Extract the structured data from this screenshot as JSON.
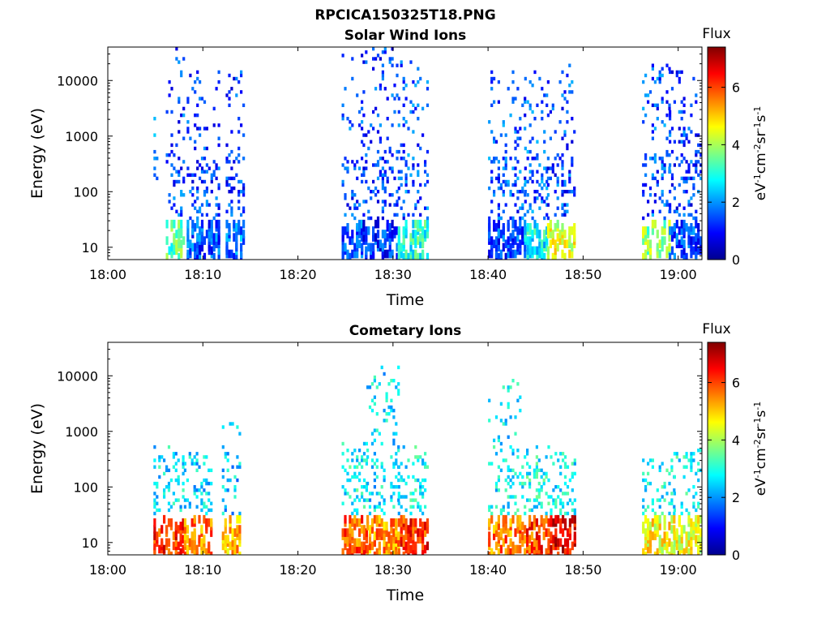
{
  "figure_title": "RPCICA150325T18.PNG",
  "colors": {
    "colormap": [
      "#00008f",
      "#0000ff",
      "#0080ff",
      "#00ffff",
      "#80ff80",
      "#ffff00",
      "#ff8000",
      "#ff0000",
      "#800000"
    ]
  },
  "chart_data": [
    {
      "type": "heatmap",
      "title": "Solar Wind Ions",
      "xlabel": "Time",
      "ylabel": "Energy (eV)",
      "x_unit": "minutes after 18:00",
      "xlim": [
        0,
        62.5
      ],
      "ylim": [
        6,
        40000
      ],
      "yscale": "log",
      "xticks": [
        0,
        10,
        20,
        30,
        40,
        50,
        60
      ],
      "xtick_labels": [
        "18:00",
        "18:10",
        "18:20",
        "18:30",
        "18:40",
        "18:50",
        "19:00"
      ],
      "yticks": [
        10,
        100,
        1000,
        10000
      ],
      "ytick_labels": [
        "10",
        "100",
        "1000",
        "10000"
      ],
      "colorbar": {
        "label": "Flux",
        "units": "eV-1cm-2sr-1s-1",
        "range": [
          0,
          7.4
        ],
        "ticks": [
          0,
          2,
          4,
          6
        ]
      },
      "bursts": [
        {
          "t0": 4.8,
          "t1": 5.2,
          "emin": 180,
          "emax": 2200,
          "flux": 2.2,
          "lowflux": 3.0
        },
        {
          "t0": 6.1,
          "t1": 8.1,
          "emin": 8,
          "emax": 35000,
          "flux": 1.4,
          "lowflux": 3.4
        },
        {
          "t0": 8.3,
          "t1": 11.6,
          "emin": 8,
          "emax": 14000,
          "flux": 1.3,
          "lowflux": 1.5
        },
        {
          "t0": 12.4,
          "t1": 14.2,
          "emin": 8,
          "emax": 22000,
          "flux": 1.3,
          "lowflux": 1.8
        },
        {
          "t0": 24.6,
          "t1": 26.8,
          "emin": 8,
          "emax": 28000,
          "flux": 1.4,
          "lowflux": 1.5
        },
        {
          "t0": 26.8,
          "t1": 30.5,
          "emin": 8,
          "emax": 38000,
          "flux": 1.3,
          "lowflux": 1.2
        },
        {
          "t0": 30.5,
          "t1": 33.6,
          "emin": 6,
          "emax": 22000,
          "flux": 1.5,
          "lowflux": 3.0
        },
        {
          "t0": 40.0,
          "t1": 43.8,
          "emin": 8,
          "emax": 14000,
          "flux": 1.5,
          "lowflux": 1.4
        },
        {
          "t0": 43.8,
          "t1": 46.2,
          "emin": 8,
          "emax": 14000,
          "flux": 1.6,
          "lowflux": 2.8
        },
        {
          "t0": 46.2,
          "t1": 49.2,
          "emin": 8,
          "emax": 20000,
          "flux": 1.4,
          "lowflux": 4.4
        },
        {
          "t0": 56.2,
          "t1": 59.0,
          "emin": 8,
          "emax": 22000,
          "flux": 1.5,
          "lowflux": 3.8
        },
        {
          "t0": 59.0,
          "t1": 62.3,
          "emin": 8,
          "emax": 14000,
          "flux": 1.3,
          "lowflux": 1.4
        }
      ]
    },
    {
      "type": "heatmap",
      "title": "Cometary Ions",
      "xlabel": "Time",
      "ylabel": "Energy (eV)",
      "x_unit": "minutes after 18:00",
      "xlim": [
        0,
        62.5
      ],
      "ylim": [
        6,
        40000
      ],
      "yscale": "log",
      "xticks": [
        0,
        10,
        20,
        30,
        40,
        50,
        60
      ],
      "xtick_labels": [
        "18:00",
        "18:10",
        "18:20",
        "18:30",
        "18:40",
        "18:50",
        "19:00"
      ],
      "yticks": [
        10,
        100,
        1000,
        10000
      ],
      "ytick_labels": [
        "10",
        "100",
        "1000",
        "10000"
      ],
      "colorbar": {
        "label": "Flux",
        "units": "eV-1cm-2sr-1s-1",
        "range": [
          0,
          7.4
        ],
        "ticks": [
          0,
          2,
          4,
          6
        ]
      },
      "bursts": [
        {
          "t0": 4.8,
          "t1": 8.0,
          "emin": 6,
          "emax": 500,
          "flux": 2.6,
          "lowflux": 6.2
        },
        {
          "t0": 8.0,
          "t1": 11.0,
          "emin": 6,
          "emax": 450,
          "flux": 2.5,
          "lowflux": 5.6
        },
        {
          "t0": 12.0,
          "t1": 14.0,
          "emin": 6,
          "emax": 1400,
          "flux": 2.4,
          "lowflux": 5.2
        },
        {
          "t0": 24.6,
          "t1": 27.2,
          "emin": 6,
          "emax": 600,
          "flux": 2.8,
          "lowflux": 5.8
        },
        {
          "t0": 27.2,
          "t1": 30.5,
          "emin": 6,
          "emax": 17000,
          "flux": 2.6,
          "lowflux": 5.4
        },
        {
          "t0": 30.5,
          "t1": 33.6,
          "emin": 6,
          "emax": 500,
          "flux": 2.8,
          "lowflux": 6.2
        },
        {
          "t0": 40.0,
          "t1": 43.5,
          "emin": 6,
          "emax": 8000,
          "flux": 2.7,
          "lowflux": 5.6
        },
        {
          "t0": 43.5,
          "t1": 46.5,
          "emin": 6,
          "emax": 550,
          "flux": 2.9,
          "lowflux": 6.0
        },
        {
          "t0": 46.5,
          "t1": 49.2,
          "emin": 6,
          "emax": 400,
          "flux": 2.8,
          "lowflux": 6.6
        },
        {
          "t0": 56.2,
          "t1": 59.5,
          "emin": 6,
          "emax": 300,
          "flux": 2.8,
          "lowflux": 4.6
        },
        {
          "t0": 59.5,
          "t1": 62.3,
          "emin": 6,
          "emax": 450,
          "flux": 2.8,
          "lowflux": 4.4
        }
      ]
    }
  ]
}
